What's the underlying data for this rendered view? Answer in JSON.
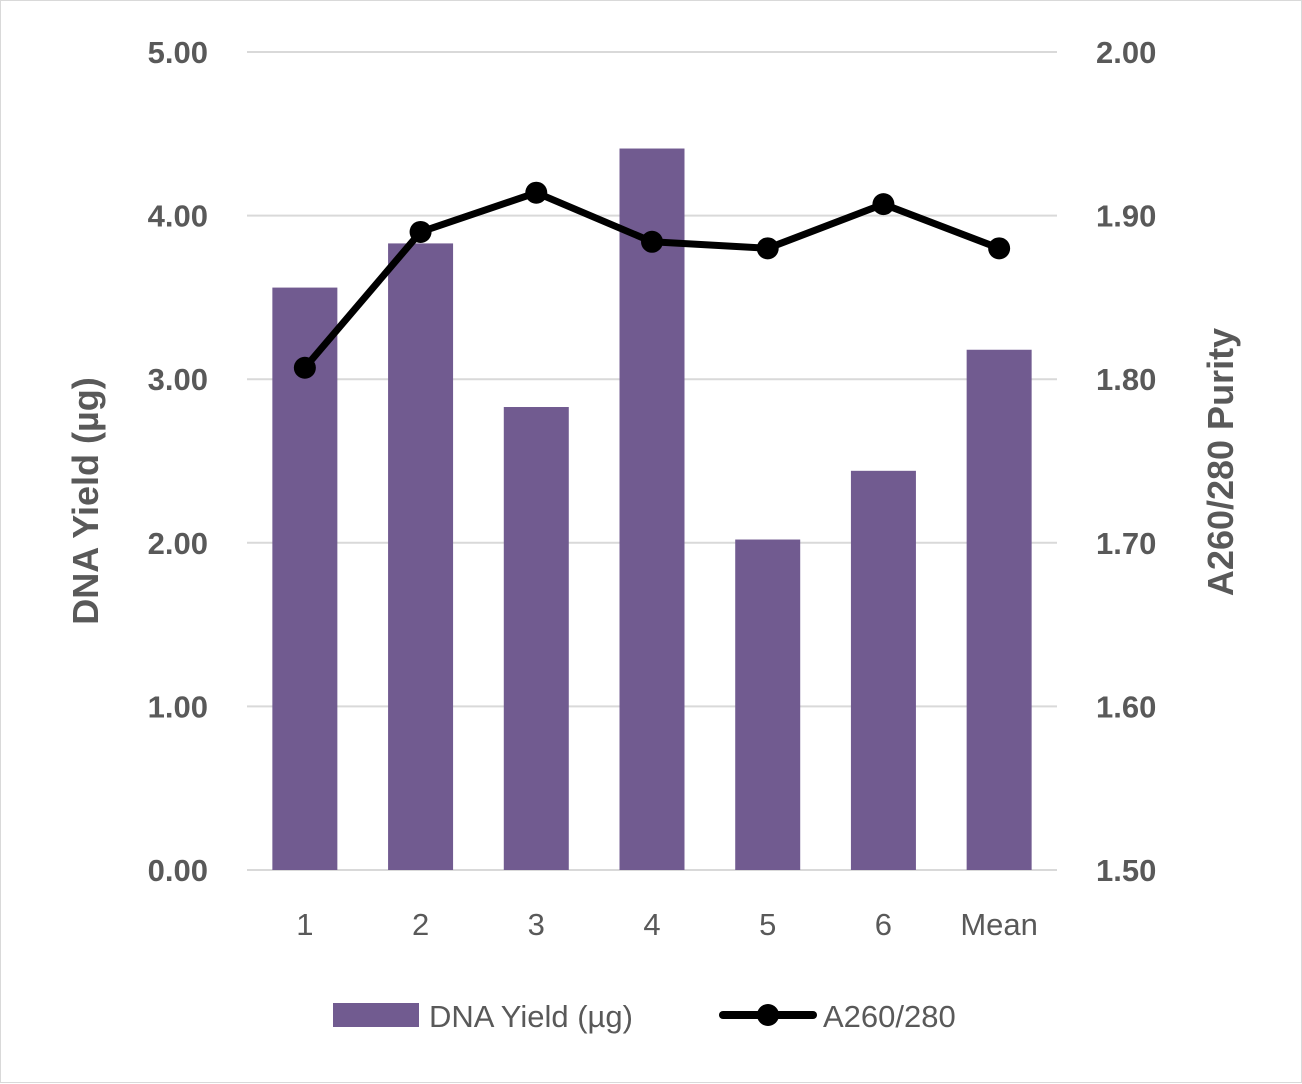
{
  "chart_data": {
    "type": "bar",
    "title": "",
    "categories": [
      "1",
      "2",
      "3",
      "4",
      "5",
      "6",
      "Mean"
    ],
    "series": [
      {
        "name": "DNA Yield (µg)",
        "kind": "bar",
        "axis": "left",
        "color": "#715b90",
        "values": [
          3.56,
          3.83,
          2.83,
          4.41,
          2.02,
          2.44,
          3.18
        ]
      },
      {
        "name": "A260/280",
        "kind": "line",
        "axis": "right",
        "color": "#000000",
        "values": [
          1.807,
          1.89,
          1.914,
          1.884,
          1.88,
          1.907,
          1.88
        ]
      }
    ],
    "ylabel": "DNA Yield (µg)",
    "y2label": "A260/280 Purity",
    "xlabel": "",
    "ylim": [
      0,
      5
    ],
    "y2lim": [
      1.5,
      2.0
    ],
    "yticks": [
      "0.00",
      "1.00",
      "2.00",
      "3.00",
      "4.00",
      "5.00"
    ],
    "y2ticks": [
      "1.50",
      "1.60",
      "1.70",
      "1.80",
      "1.90",
      "2.00"
    ],
    "grid": true,
    "legend_position": "bottom"
  }
}
